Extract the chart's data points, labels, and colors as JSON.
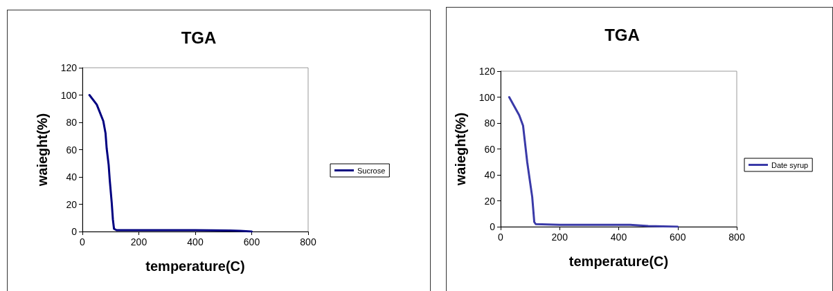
{
  "chart_data": [
    {
      "type": "line",
      "title": "TGA",
      "xlabel": "temperature(C)",
      "ylabel": "waieght(%)",
      "xlim": [
        0,
        800
      ],
      "xticks": [
        0,
        200,
        400,
        600,
        800
      ],
      "ylim": [
        0,
        120
      ],
      "yticks": [
        0,
        20,
        40,
        60,
        80,
        100,
        120
      ],
      "grid": false,
      "legend": "right",
      "marker": "none",
      "line_style": "solid",
      "series": [
        {
          "name": "Sucrose",
          "color": "#000080",
          "x": [
            25,
            51,
            74,
            82,
            86,
            93,
            97,
            104,
            108,
            112,
            121,
            200,
            300,
            400,
            523,
            560,
            600
          ],
          "values": [
            100,
            93,
            81,
            72,
            61,
            49,
            37.5,
            21,
            9,
            2,
            1,
            1,
            1,
            1,
            0.7,
            0.5,
            0
          ]
        }
      ]
    },
    {
      "type": "line",
      "title": "TGA",
      "xlabel": "temperature(C)",
      "ylabel": "waieght(%)",
      "xlim": [
        0,
        800
      ],
      "xticks": [
        0,
        200,
        400,
        600,
        800
      ],
      "ylim": [
        0,
        120
      ],
      "yticks": [
        0,
        20,
        40,
        60,
        80,
        100,
        120
      ],
      "grid": false,
      "legend": "right",
      "marker": "none",
      "line_style": "solid",
      "series": [
        {
          "name": "Date syrup",
          "color": "#3a3aa8",
          "x": [
            29,
            63,
            76,
            82,
            90,
            100,
            107,
            114,
            119,
            200,
            300,
            439,
            500,
            600
          ],
          "values": [
            100,
            86,
            78,
            66,
            50,
            34,
            23,
            3.6,
            2,
            1.5,
            1.5,
            1.5,
            0.5,
            0
          ]
        }
      ]
    }
  ]
}
